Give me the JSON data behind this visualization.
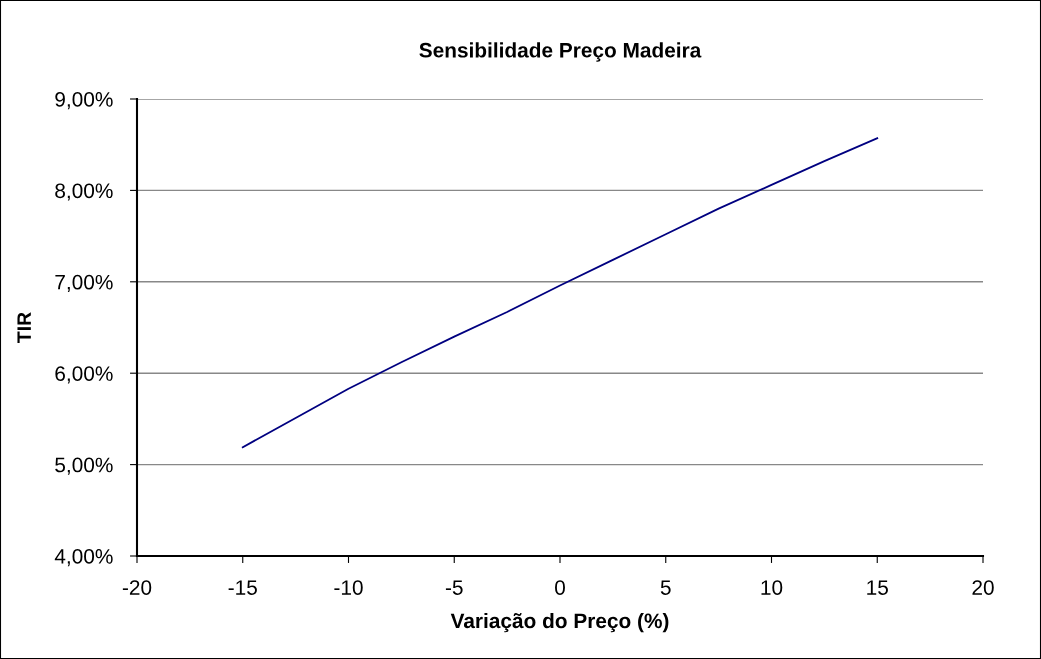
{
  "chart_data": {
    "type": "line",
    "title": "Sensibilidade Preço Madeira",
    "xlabel": "Variação do Preço (%)",
    "ylabel": "TIR",
    "x": [
      -15,
      -12.5,
      -10,
      -7.5,
      -5,
      -2.5,
      0,
      2.5,
      5,
      7.5,
      10,
      12.5,
      15
    ],
    "series": [
      {
        "color": "#000080",
        "values": [
          5.19,
          5.51,
          5.83,
          6.12,
          6.4,
          6.67,
          6.96,
          7.24,
          7.52,
          7.8,
          8.06,
          8.32,
          8.57
        ]
      }
    ],
    "xlim": [
      -20,
      20
    ],
    "xticks": [
      -20,
      -15,
      -10,
      -5,
      0,
      5,
      10,
      15,
      20
    ],
    "ylim": [
      4,
      9
    ],
    "yticks": [
      {
        "value": 4,
        "label": "4,00%"
      },
      {
        "value": 5,
        "label": "5,00%"
      },
      {
        "value": 6,
        "label": "6,00%"
      },
      {
        "value": 7,
        "label": "7,00%"
      },
      {
        "value": 8,
        "label": "8,00%"
      },
      {
        "value": 9,
        "label": "9,00%"
      }
    ],
    "grid": "y",
    "marker": "none",
    "line_style": "solid"
  }
}
